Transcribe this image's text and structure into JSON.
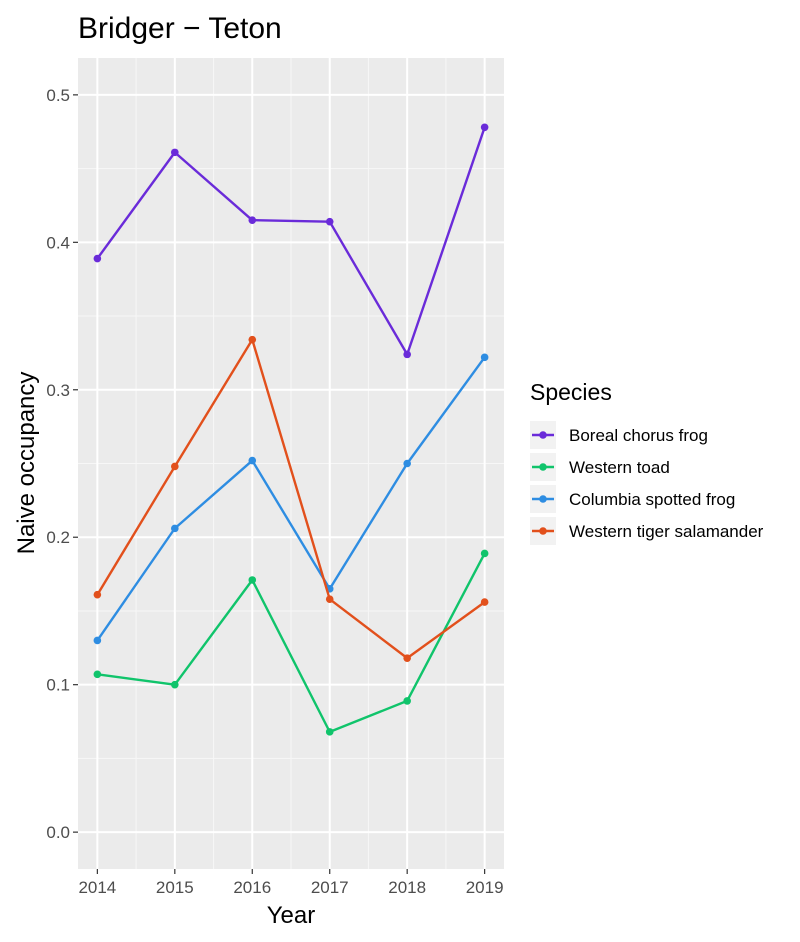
{
  "chart_data": {
    "type": "line",
    "title": "Bridger − Teton",
    "xlabel": "Year",
    "ylabel": "Naive occupancy",
    "x": [
      2014,
      2015,
      2016,
      2017,
      2018,
      2019
    ],
    "x_tick_labels": [
      "2014",
      "2015",
      "2016",
      "2017",
      "2018",
      "2019"
    ],
    "ylim": [
      -0.025,
      0.525
    ],
    "y_ticks": [
      0.0,
      0.1,
      0.2,
      0.3,
      0.4,
      0.5
    ],
    "y_tick_labels": [
      "0.0",
      "0.1",
      "0.2",
      "0.3",
      "0.4",
      "0.5"
    ],
    "grid": true,
    "legend": {
      "title": "Species",
      "placement": "right"
    },
    "series": [
      {
        "name": "Boreal chorus frog",
        "color": "#6a2bd9",
        "values": [
          0.389,
          0.461,
          0.415,
          0.414,
          0.324,
          0.478
        ]
      },
      {
        "name": "Western toad",
        "color": "#10c46b",
        "values": [
          0.107,
          0.1,
          0.171,
          0.068,
          0.089,
          0.189
        ]
      },
      {
        "name": "Columbia spotted frog",
        "color": "#2e8de2",
        "values": [
          0.13,
          0.206,
          0.252,
          0.165,
          0.25,
          0.322
        ]
      },
      {
        "name": "Western tiger salamander",
        "color": "#e2501c",
        "values": [
          0.161,
          0.248,
          0.334,
          0.158,
          0.118,
          0.156
        ]
      }
    ]
  }
}
